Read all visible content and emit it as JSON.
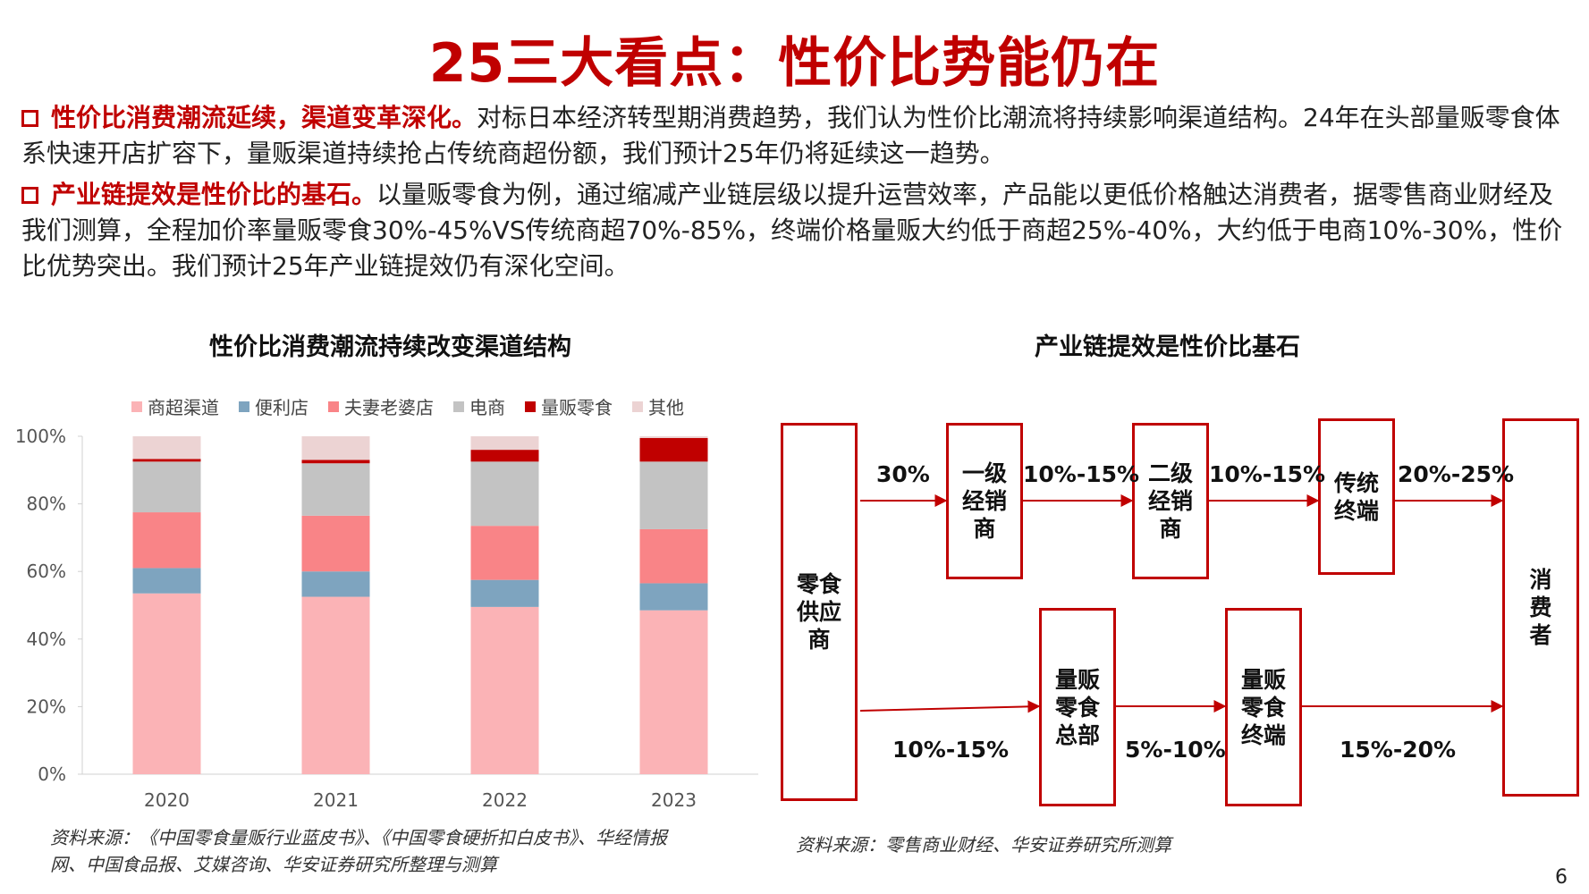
{
  "title": "25三大看点：性价比势能仍在",
  "paragraphs": [
    {
      "lead": "性价比消费潮流延续，渠道变革深化。",
      "body": "对标日本经济转型期消费趋势，我们认为性价比潮流将持续影响渠道结构。24年在头部量贩零食体系快速开店扩容下，量贩渠道持续抢占传统商超份额，我们预计25年仍将延续这一趋势。"
    },
    {
      "lead": "产业链提效是性价比的基石。",
      "body": "以量贩零食为例，通过缩减产业链层级以提升运营效率，产品能以更低价格触达消费者，据零售商业财经及我们测算，全程加价率量贩零食30%-45%VS传统商超70%-85%，终端价格量贩大约低于商超25%-40%，大约低于电商10%-30%，性价比优势突出。我们预计25年产业链提效仍有深化空间。"
    }
  ],
  "chart_data": {
    "type": "bar",
    "stacked": true,
    "title": "性价比消费潮流持续改变渠道结构",
    "categories": [
      "2020",
      "2021",
      "2022",
      "2023"
    ],
    "y_ticks": [
      "0%",
      "20%",
      "40%",
      "60%",
      "80%",
      "100%"
    ],
    "ylim": [
      0,
      100
    ],
    "legend_position": "top",
    "series": [
      {
        "name": "商超渠道",
        "color": "#fbb3b6",
        "values": [
          53.5,
          52.5,
          49.5,
          48.5
        ]
      },
      {
        "name": "便利店",
        "color": "#7ea4bf",
        "values": [
          7.5,
          7.5,
          8.0,
          8.0
        ]
      },
      {
        "name": "夫妻老婆店",
        "color": "#f98487",
        "values": [
          16.5,
          16.5,
          16.0,
          16.0
        ]
      },
      {
        "name": "电商",
        "color": "#c3c3c3",
        "values": [
          15.0,
          15.5,
          19.0,
          20.0
        ]
      },
      {
        "name": "量贩零食",
        "color": "#c00000",
        "values": [
          0.8,
          1.0,
          3.5,
          7.0
        ]
      },
      {
        "name": "其他",
        "color": "#ecd3d3",
        "values": [
          6.7,
          7.0,
          4.0,
          0.5
        ]
      }
    ]
  },
  "chart_source": "资料来源：《中国零食量贩行业蓝皮书》、《中国零食硬折扣白皮书》、华经情报网、中国食品报、艾媒咨询、华安证券研究所整理与测算",
  "flow": {
    "title": "产业链提效是性价比基石",
    "supplier": "零食供应商",
    "consumer": "消费者",
    "top_boxes": [
      "一级经销商",
      "二级经销商",
      "传统终端"
    ],
    "bottom_boxes": [
      "量贩零食总部",
      "量贩零食终端"
    ],
    "top_labels": [
      "30%",
      "10%-15%",
      "10%-15%",
      "20%-25%"
    ],
    "bottom_labels": [
      "10%-15%",
      "5%-10%",
      "15%-20%"
    ],
    "source": "资料来源：零售商业财经、华安证券研究所测算"
  },
  "page_number": "6"
}
